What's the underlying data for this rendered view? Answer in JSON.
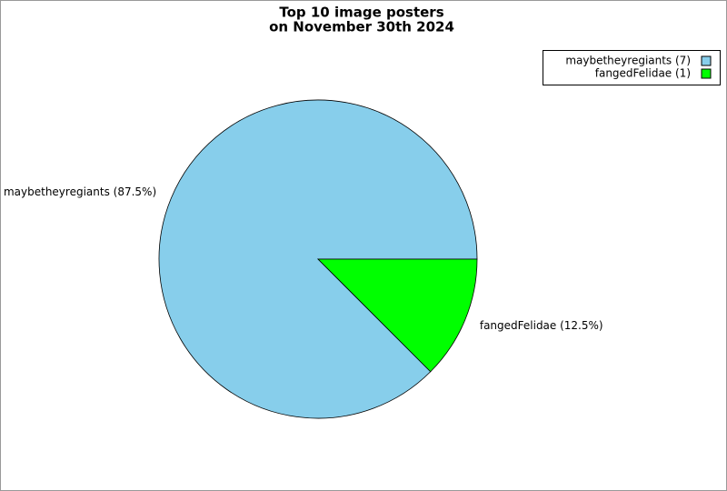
{
  "chart_data": {
    "type": "pie",
    "title": [
      "Top 10 image posters",
      "on November 30th 2024"
    ],
    "categories": [
      "maybetheyregiants",
      "fangedFelidae"
    ],
    "values": [
      7,
      1
    ],
    "value_labels": [
      "maybetheyregiants (87.5%)",
      "fangedFelidae (12.5%)"
    ],
    "legend_labels": [
      "maybetheyregiants (7)",
      "fangedFelidae (1)"
    ],
    "colors": [
      "#87ceeb",
      "#00ff00"
    ],
    "legend": "upper right"
  }
}
